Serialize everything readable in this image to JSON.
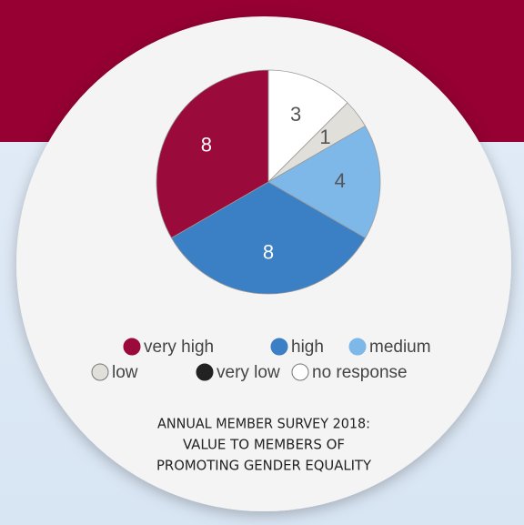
{
  "chart_data": {
    "type": "pie",
    "title": [
      "ANNUAL MEMBER SURVEY 2018:",
      "VALUE TO MEMBERS OF",
      "PROMOTING GENDER EQUALITY"
    ],
    "categories": [
      "very high",
      "high",
      "medium",
      "low",
      "very low",
      "no response"
    ],
    "values": [
      8,
      8,
      4,
      1,
      0,
      3
    ],
    "colors": [
      "#9a0a3a",
      "#3b7fc4",
      "#7db8e8",
      "#e0dfda",
      "#222222",
      "#ffffff"
    ],
    "start": "top",
    "direction": "counterclockwise-from-top-reversed"
  }
}
